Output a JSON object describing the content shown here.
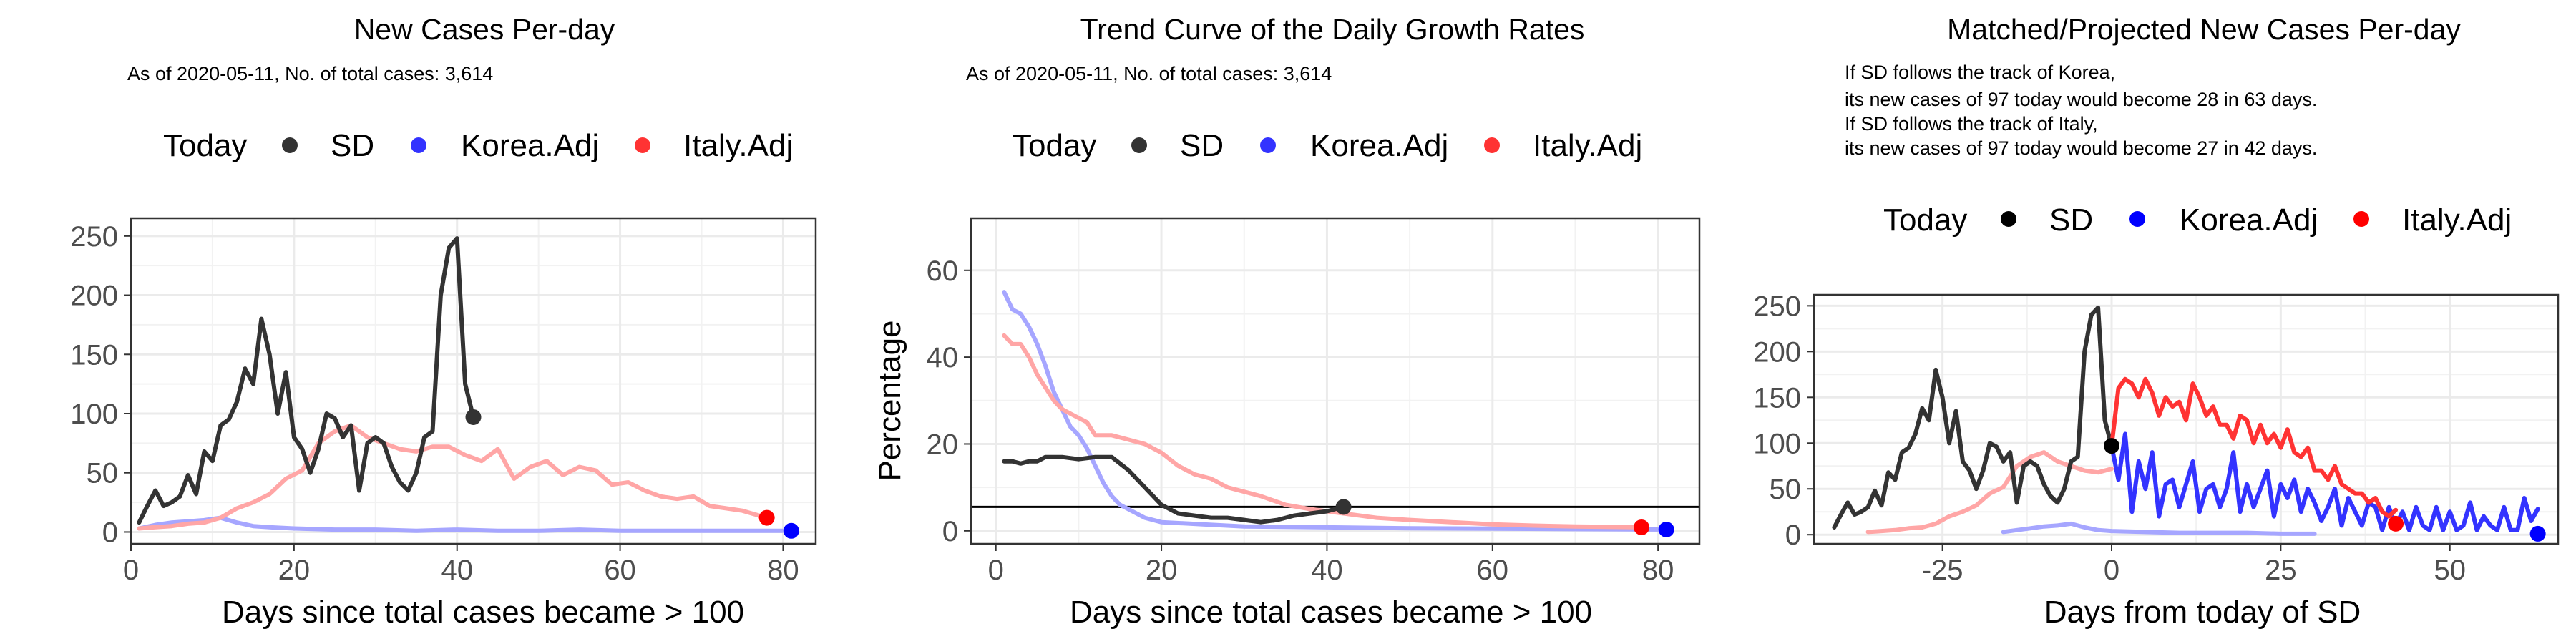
{
  "colors": {
    "sd": "#333333",
    "korea": "#3333ff",
    "italy": "#ff3333",
    "sd_dot": "#000000",
    "korea_adj_light": "#a6a6ff",
    "italy_adj_light": "#ffa6a6"
  },
  "chart_data": [
    {
      "type": "line",
      "title": "New Cases Per-day",
      "subtitle": "As of 2020-05-11, No. of total cases: 3,614",
      "legend": {
        "placement": "top",
        "title": "Today",
        "entries": [
          "SD",
          "Korea.Adj",
          "Italy.Adj"
        ]
      },
      "xlabel": "Days since total cases became > 100",
      "ylabel": "",
      "xlim": [
        0,
        84
      ],
      "ylim": [
        -10,
        265
      ],
      "xticks": [
        0,
        20,
        40,
        60,
        80
      ],
      "yticks": [
        0,
        50,
        100,
        150,
        200,
        250
      ],
      "grid": true,
      "series": [
        {
          "name": "SD",
          "color": "#333333",
          "x": [
            1,
            2,
            3,
            4,
            5,
            6,
            7,
            8,
            9,
            10,
            11,
            12,
            13,
            14,
            15,
            16,
            17,
            18,
            19,
            20,
            21,
            22,
            23,
            24,
            25,
            26,
            27,
            28,
            29,
            30,
            31,
            32,
            33,
            34,
            35,
            36,
            37,
            38,
            39,
            40,
            41,
            42
          ],
          "y": [
            8,
            22,
            35,
            22,
            25,
            30,
            48,
            32,
            68,
            60,
            90,
            95,
            110,
            138,
            125,
            180,
            150,
            100,
            135,
            80,
            70,
            50,
            70,
            100,
            96,
            80,
            90,
            35,
            75,
            80,
            75,
            55,
            42,
            35,
            50,
            80,
            85,
            200,
            240,
            248,
            125,
            97
          ]
        },
        {
          "name": "Korea.Adj",
          "color": "#a6a6ff",
          "x": [
            1,
            3,
            5,
            7,
            9,
            11,
            13,
            15,
            17,
            20,
            25,
            30,
            35,
            40,
            45,
            50,
            55,
            60,
            65,
            70,
            75,
            81
          ],
          "y": [
            3,
            6,
            8,
            9,
            10,
            12,
            8,
            5,
            4,
            3,
            2,
            2,
            1,
            2,
            1,
            1,
            2,
            1,
            1,
            1,
            1,
            1
          ]
        },
        {
          "name": "Italy.Adj",
          "color": "#ffa6a6",
          "x": [
            1,
            3,
            5,
            7,
            9,
            11,
            13,
            15,
            17,
            19,
            21,
            23,
            25,
            27,
            29,
            31,
            33,
            35,
            37,
            39,
            41,
            43,
            45,
            47,
            49,
            51,
            53,
            55,
            57,
            59,
            61,
            63,
            65,
            67,
            69,
            71,
            73,
            75,
            78
          ],
          "y": [
            3,
            4,
            5,
            7,
            8,
            12,
            20,
            25,
            32,
            45,
            52,
            75,
            85,
            90,
            80,
            75,
            70,
            68,
            72,
            72,
            65,
            60,
            70,
            45,
            55,
            60,
            48,
            55,
            52,
            40,
            42,
            35,
            30,
            28,
            30,
            22,
            20,
            18,
            12
          ]
        }
      ],
      "today_points": [
        {
          "name": "SD",
          "x": 42,
          "y": 97
        },
        {
          "name": "Korea.Adj",
          "x": 81,
          "y": 1
        },
        {
          "name": "Italy.Adj",
          "x": 78,
          "y": 12
        }
      ]
    },
    {
      "type": "line",
      "title": "Trend Curve of the Daily Growth Rates",
      "subtitle": "As of 2020-05-11, No. of total cases: 3,614",
      "legend": {
        "placement": "top",
        "title": "Today",
        "entries": [
          "SD",
          "Korea.Adj",
          "Italy.Adj"
        ]
      },
      "xlabel": "Days since total cases became > 100",
      "ylabel": "Percentage",
      "xlim": [
        -3,
        85
      ],
      "ylim": [
        -3,
        72
      ],
      "xticks": [
        0,
        20,
        40,
        60,
        80
      ],
      "yticks": [
        0,
        20,
        40,
        60
      ],
      "hline": 5.5,
      "grid": true,
      "series": [
        {
          "name": "SD",
          "color": "#333333",
          "x": [
            1,
            2,
            3,
            4,
            5,
            6,
            7,
            8,
            10,
            12,
            14,
            16,
            18,
            20,
            22,
            24,
            26,
            28,
            30,
            32,
            34,
            36,
            38,
            40,
            42
          ],
          "y": [
            16,
            16,
            15.5,
            16,
            16,
            17,
            17,
            17,
            16.5,
            17,
            17,
            14,
            10,
            6,
            4,
            3.5,
            3,
            3,
            2.5,
            2,
            2.5,
            3.5,
            4,
            4.5,
            5.5
          ]
        },
        {
          "name": "Korea.Adj",
          "color": "#a6a6ff",
          "x": [
            1,
            2,
            3,
            4,
            5,
            6,
            7,
            8,
            9,
            10,
            11,
            12,
            13,
            14,
            15,
            16,
            18,
            20,
            25,
            30,
            40,
            50,
            60,
            70,
            81
          ],
          "y": [
            55,
            51,
            50,
            47,
            43,
            38,
            32,
            28,
            24,
            22,
            19,
            15,
            11,
            8,
            6,
            5,
            3,
            2,
            1.5,
            1,
            0.8,
            0.6,
            0.5,
            0.4,
            0.3
          ]
        },
        {
          "name": "Italy.Adj",
          "color": "#ffa6a6",
          "x": [
            1,
            2,
            3,
            4,
            5,
            6,
            7,
            8,
            9,
            10,
            11,
            12,
            14,
            16,
            18,
            20,
            22,
            24,
            26,
            28,
            30,
            32,
            35,
            38,
            42,
            46,
            50,
            55,
            60,
            65,
            70,
            78
          ],
          "y": [
            45,
            43,
            43,
            40,
            36,
            33,
            30,
            28,
            27,
            26,
            25,
            22,
            22,
            21,
            20,
            18,
            15,
            13,
            12,
            10,
            9,
            8,
            6,
            5,
            4,
            3,
            2.5,
            2,
            1.5,
            1.2,
            1,
            0.8
          ]
        }
      ],
      "today_points": [
        {
          "name": "SD",
          "x": 42,
          "y": 5.5
        },
        {
          "name": "Korea.Adj",
          "x": 81,
          "y": 0.3
        },
        {
          "name": "Italy.Adj",
          "x": 78,
          "y": 0.8
        }
      ]
    },
    {
      "type": "line",
      "title": "Matched/Projected New Cases Per-day",
      "subtitle": "If SD follows the track of Korea,",
      "notes": [
        "If SD follows the track of Korea,",
        "its new cases of 97 today would become 28 in 63 days.",
        "If SD follows the track of Italy,",
        "its new cases of 97 today would become 27 in 42 days."
      ],
      "legend": {
        "placement": "top",
        "title": "Today",
        "entries": [
          "SD",
          "Korea.Adj",
          "Italy.Adj"
        ]
      },
      "xlabel": "Days from today of SD",
      "ylabel": "",
      "xlim": [
        -44,
        66
      ],
      "ylim": [
        -10,
        262
      ],
      "xticks": [
        -25,
        0,
        25,
        50
      ],
      "xticklabels": [
        "-25",
        "0",
        "25",
        "50"
      ],
      "yticks": [
        0,
        50,
        100,
        150,
        200,
        250
      ],
      "grid": true,
      "series": [
        {
          "name": "SD",
          "color": "#333333",
          "x": [
            -41,
            -40,
            -39,
            -38,
            -37,
            -36,
            -35,
            -34,
            -33,
            -32,
            -31,
            -30,
            -29,
            -28,
            -27,
            -26,
            -25,
            -24,
            -23,
            -22,
            -21,
            -20,
            -19,
            -18,
            -17,
            -16,
            -15,
            -14,
            -13,
            -12,
            -11,
            -10,
            -9,
            -8,
            -7,
            -6,
            -5,
            -4,
            -3,
            -2,
            -1,
            0
          ],
          "y": [
            8,
            22,
            35,
            22,
            25,
            30,
            48,
            32,
            68,
            60,
            90,
            95,
            110,
            138,
            125,
            180,
            150,
            100,
            135,
            80,
            70,
            50,
            70,
            100,
            96,
            80,
            90,
            35,
            75,
            80,
            75,
            55,
            42,
            35,
            50,
            80,
            85,
            200,
            240,
            248,
            125,
            97
          ]
        },
        {
          "name": "Korea.Adj light",
          "color": "#a6a6ff",
          "x": [
            -16,
            -14,
            -12,
            -10,
            -8,
            -6,
            -4,
            -2,
            0,
            5,
            10,
            15,
            20,
            25,
            30
          ],
          "y": [
            3,
            5,
            7,
            9,
            10,
            12,
            8,
            5,
            4,
            3,
            2,
            2,
            2,
            1,
            1
          ]
        },
        {
          "name": "Italy.Adj light",
          "color": "#ffa6a6",
          "x": [
            -36,
            -34,
            -32,
            -30,
            -28,
            -26,
            -24,
            -22,
            -20,
            -18,
            -16,
            -14,
            -12,
            -10,
            -8,
            -6,
            -4,
            -2,
            0
          ],
          "y": [
            3,
            4,
            5,
            7,
            8,
            12,
            20,
            25,
            32,
            45,
            52,
            75,
            85,
            90,
            80,
            75,
            70,
            68,
            72
          ]
        },
        {
          "name": "Korea.Adj",
          "color": "#3333ff",
          "x": [
            0,
            1,
            2,
            3,
            4,
            5,
            6,
            7,
            8,
            9,
            10,
            11,
            12,
            13,
            14,
            15,
            16,
            17,
            18,
            19,
            20,
            21,
            22,
            23,
            24,
            25,
            26,
            27,
            28,
            29,
            30,
            31,
            32,
            33,
            34,
            35,
            36,
            37,
            38,
            39,
            40,
            41,
            42,
            43,
            44,
            45,
            46,
            47,
            48,
            49,
            50,
            51,
            52,
            53,
            54,
            55,
            56,
            57,
            58,
            59,
            60,
            61,
            62,
            63
          ],
          "y": [
            97,
            60,
            110,
            25,
            80,
            50,
            90,
            20,
            55,
            60,
            30,
            55,
            80,
            25,
            50,
            55,
            30,
            50,
            90,
            25,
            55,
            30,
            50,
            70,
            20,
            55,
            40,
            60,
            25,
            50,
            35,
            15,
            30,
            50,
            10,
            40,
            25,
            10,
            35,
            30,
            5,
            30,
            10,
            25,
            5,
            30,
            10,
            5,
            30,
            5,
            25,
            5,
            10,
            35,
            5,
            20,
            10,
            5,
            30,
            5,
            5,
            40,
            15,
            28
          ]
        },
        {
          "name": "Italy.Adj",
          "color": "#ff3333",
          "x": [
            0,
            1,
            2,
            3,
            4,
            5,
            6,
            7,
            8,
            9,
            10,
            11,
            12,
            13,
            14,
            15,
            16,
            17,
            18,
            19,
            20,
            21,
            22,
            23,
            24,
            25,
            26,
            27,
            28,
            29,
            30,
            31,
            32,
            33,
            34,
            35,
            36,
            37,
            38,
            39,
            40,
            41,
            42
          ],
          "y": [
            97,
            160,
            170,
            165,
            150,
            170,
            155,
            130,
            150,
            140,
            145,
            125,
            165,
            150,
            130,
            140,
            120,
            120,
            105,
            130,
            125,
            100,
            120,
            100,
            110,
            95,
            115,
            90,
            85,
            95,
            70,
            70,
            60,
            75,
            55,
            50,
            45,
            45,
            35,
            40,
            25,
            20,
            27
          ]
        }
      ],
      "today_points": [
        {
          "name": "SD",
          "x": 0,
          "y": 97
        },
        {
          "name": "Korea.Adj",
          "x": 63,
          "y": 1
        },
        {
          "name": "Italy.Adj",
          "x": 42,
          "y": 12
        }
      ]
    }
  ]
}
